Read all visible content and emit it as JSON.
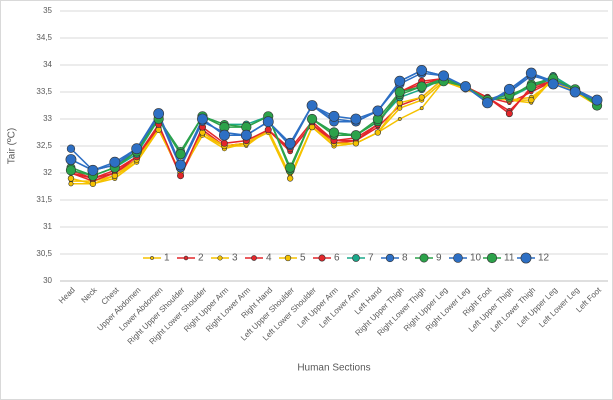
{
  "chart_data": {
    "type": "line",
    "y_label": "Tair (ºC)",
    "x_label": "Human Sections",
    "categories": [
      "Head",
      "Neck",
      "Chest",
      "Upper Abdomen",
      "Lower Abdomen",
      "Right Upper Shoulder",
      "Right Lower Shoulder",
      "Right Upper Arm",
      "Right Lower Arm",
      "Right Hand",
      "Left Upper Shoulder",
      "Left Lower Shoulder",
      "Left Upper Arm",
      "Left Lower Arm",
      "Left Hand",
      "Right Upper Thigh",
      "Right Lower Thigh",
      "Right Upper Leg",
      "Right Lower Leg",
      "Right Foot",
      "Left Upper Thigh",
      "Left Lower Thigh",
      "Left Upper Leg",
      "Left Lower Leg",
      "Left Foot"
    ],
    "ylim": [
      30,
      35
    ],
    "yticks": [
      30,
      {
        "value": 30.5,
        "label": "30,5"
      },
      31,
      {
        "value": 31.5,
        "label": "31,5"
      },
      32,
      {
        "value": 32.5,
        "label": "32,5"
      },
      33,
      {
        "value": 33.5,
        "label": "33,5"
      },
      34,
      {
        "value": 34.5,
        "label": "34,5"
      },
      35
    ],
    "grid": true,
    "legend": "bottom",
    "series": [
      {
        "name": "1",
        "color": "#f5c200",
        "values": [
          31.85,
          31.85,
          31.95,
          32.2,
          32.8,
          32.0,
          32.7,
          32.5,
          32.5,
          32.8,
          31.95,
          32.85,
          32.5,
          32.55,
          32.75,
          33.0,
          33.2,
          33.7,
          33.55,
          33.4,
          33.35,
          33.3,
          33.75,
          33.5,
          33.25
        ]
      },
      {
        "name": "2",
        "color": "#e3262a",
        "values": [
          32.0,
          31.9,
          32.0,
          32.25,
          32.85,
          31.95,
          32.75,
          32.5,
          32.55,
          32.8,
          32.4,
          32.9,
          32.55,
          32.6,
          32.85,
          33.25,
          33.4,
          33.75,
          33.55,
          33.4,
          33.3,
          33.5,
          33.7,
          33.5,
          33.3
        ]
      },
      {
        "name": "3",
        "color": "#f5c200",
        "values": [
          31.8,
          31.8,
          31.9,
          32.2,
          32.8,
          32.0,
          32.7,
          32.45,
          32.55,
          32.75,
          31.9,
          32.85,
          32.5,
          32.55,
          32.75,
          33.2,
          33.35,
          33.7,
          33.55,
          33.4,
          33.35,
          33.4,
          33.7,
          33.5,
          33.3
        ]
      },
      {
        "name": "4",
        "color": "#e3262a",
        "values": [
          32.0,
          31.85,
          32.0,
          32.3,
          32.85,
          31.95,
          32.8,
          32.5,
          32.55,
          32.8,
          32.4,
          32.9,
          32.6,
          32.6,
          32.9,
          33.5,
          33.65,
          33.75,
          33.6,
          33.4,
          33.15,
          33.55,
          33.7,
          33.55,
          33.35
        ]
      },
      {
        "name": "5",
        "color": "#f5c200",
        "values": [
          31.9,
          31.8,
          31.95,
          32.25,
          32.8,
          32.0,
          32.75,
          32.5,
          32.55,
          32.8,
          31.9,
          32.85,
          32.55,
          32.55,
          32.75,
          33.3,
          33.4,
          33.75,
          33.55,
          33.4,
          33.35,
          33.35,
          33.75,
          33.5,
          33.25
        ]
      },
      {
        "name": "6",
        "color": "#e3262a",
        "values": [
          32.05,
          31.9,
          32.05,
          32.3,
          32.9,
          31.95,
          32.85,
          32.55,
          32.6,
          32.8,
          32.45,
          32.95,
          32.6,
          32.65,
          32.9,
          33.5,
          33.7,
          33.75,
          33.6,
          33.4,
          33.1,
          33.6,
          33.7,
          33.55,
          33.35
        ]
      },
      {
        "name": "7",
        "color": "#1aa88a",
        "values": [
          32.1,
          31.95,
          32.1,
          32.35,
          33.0,
          32.4,
          33.05,
          32.9,
          32.9,
          33.05,
          32.1,
          33.0,
          32.75,
          32.7,
          32.95,
          33.4,
          33.55,
          33.75,
          33.6,
          33.35,
          33.4,
          33.6,
          33.8,
          33.55,
          33.3
        ]
      },
      {
        "name": "8",
        "color": "#2d6fc4",
        "values": [
          32.45,
          32.05,
          32.15,
          32.4,
          33.05,
          32.1,
          32.95,
          32.75,
          32.7,
          32.95,
          32.5,
          33.25,
          33.0,
          32.95,
          33.15,
          33.7,
          33.9,
          33.8,
          33.6,
          33.35,
          33.5,
          33.85,
          33.7,
          33.55,
          33.35
        ]
      },
      {
        "name": "9",
        "color": "#2ca24a",
        "values": [
          32.1,
          31.95,
          32.1,
          32.4,
          33.0,
          32.4,
          33.05,
          32.9,
          32.85,
          33.05,
          32.05,
          33.0,
          32.7,
          32.7,
          32.95,
          33.45,
          33.6,
          33.75,
          33.6,
          33.35,
          33.4,
          33.65,
          33.75,
          33.55,
          33.3
        ]
      },
      {
        "name": "10",
        "color": "#2d6fc4",
        "values": [
          32.25,
          32.05,
          32.15,
          32.45,
          33.05,
          32.1,
          33.0,
          32.7,
          32.7,
          32.95,
          32.55,
          33.25,
          32.95,
          32.95,
          33.15,
          33.65,
          33.85,
          33.8,
          33.6,
          33.3,
          33.5,
          33.8,
          33.7,
          33.55,
          33.35
        ]
      },
      {
        "name": "11",
        "color": "#2ca24a",
        "values": [
          32.05,
          31.95,
          32.1,
          32.4,
          33.0,
          32.35,
          33.05,
          32.85,
          32.85,
          33.05,
          32.1,
          33.0,
          32.75,
          32.7,
          33.0,
          33.5,
          33.6,
          33.7,
          33.6,
          33.35,
          33.45,
          33.6,
          33.75,
          33.55,
          33.25
        ]
      },
      {
        "name": "12",
        "color": "#2d6fc4",
        "values": [
          32.25,
          32.05,
          32.2,
          32.45,
          33.1,
          32.15,
          33.0,
          32.7,
          32.7,
          32.95,
          32.55,
          33.25,
          33.05,
          33.0,
          33.15,
          33.7,
          33.9,
          33.8,
          33.6,
          33.3,
          33.55,
          33.85,
          33.65,
          33.5,
          33.35
        ]
      }
    ]
  }
}
